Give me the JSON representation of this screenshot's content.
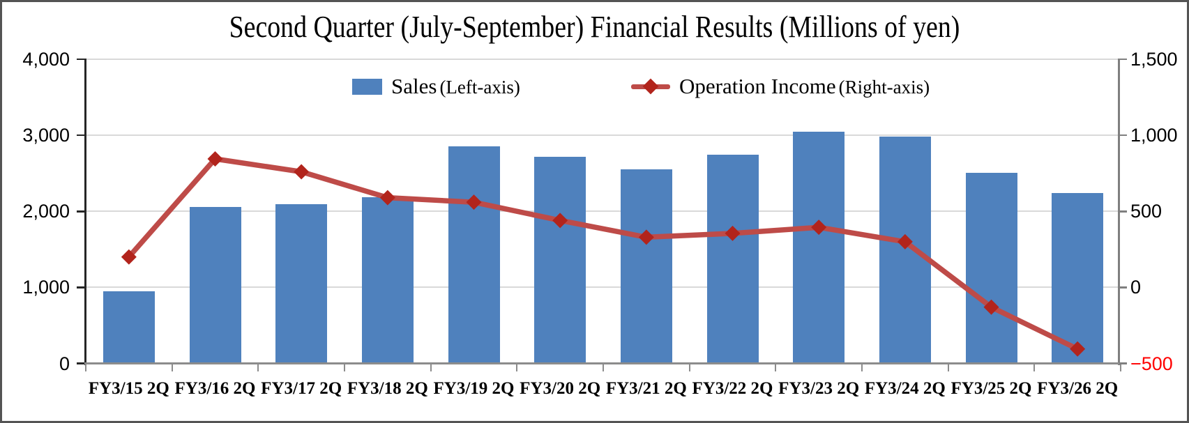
{
  "chart_data": {
    "type": "combo-bar-line",
    "title": "Second Quarter (July-September) Financial Results (Millions of yen)",
    "categories": [
      "FY3/15 2Q",
      "FY3/16 2Q",
      "FY3/17 2Q",
      "FY3/18 2Q",
      "FY3/19 2Q",
      "FY3/20 2Q",
      "FY3/21 2Q",
      "FY3/22 2Q",
      "FY3/23 2Q",
      "FY3/24 2Q",
      "FY3/25 2Q",
      "FY3/26 2Q"
    ],
    "series": [
      {
        "name": "Sales",
        "axis_note": "(Left-axis)",
        "axis": "left",
        "type": "bar",
        "color": "#4F81BD",
        "values": [
          950,
          2060,
          2090,
          2185,
          2850,
          2715,
          2555,
          2745,
          3050,
          2980,
          2505,
          2240
        ]
      },
      {
        "name": "Operation Income",
        "axis_note": "(Right-axis)",
        "axis": "right",
        "type": "line",
        "color": "#BE4B48",
        "marker": "diamond",
        "marker_color": "#B2241C",
        "values": [
          200,
          845,
          760,
          590,
          560,
          440,
          330,
          355,
          395,
          300,
          -130,
          -405
        ]
      }
    ],
    "left_axis": {
      "min": 0,
      "max": 4000,
      "tick_labels": [
        "0",
        "1,000",
        "2,000",
        "3,000",
        "4,000"
      ]
    },
    "right_axis": {
      "min": -500,
      "max": 1500,
      "tick_labels": [
        "−500",
        "0",
        "500",
        "1,000",
        "1,500"
      ],
      "negative_label_color": "#FF0000"
    },
    "grid": true,
    "legend_position": "top-center-inside"
  }
}
